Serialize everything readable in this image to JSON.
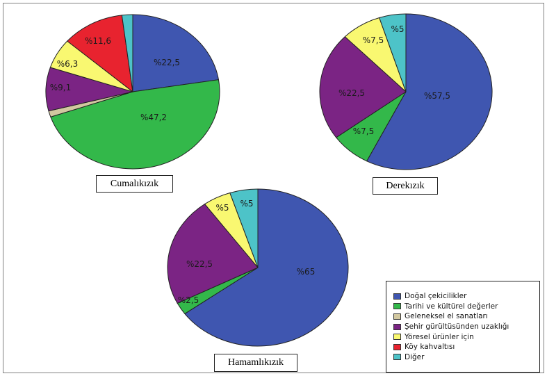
{
  "colors": {
    "Doğal çekicilikler": "#3f56b0",
    "Tarihi ve kültürel değerler": "#33b84a",
    "Geleneksel el sanatları": "#d2c8a0",
    "Şehir gürültüsünden uzaklığı": "#7b2484",
    "Yöresel ürünler için": "#f9f871",
    "Köy kahvaltısı": "#e8232f",
    "Diğer": "#4dc3c8"
  },
  "legend": {
    "items": [
      "Doğal çekicilikler",
      "Tarihi ve kültürel değerler",
      "Geleneksel el sanatları",
      "Şehir gürültüsünden uzaklığı",
      "Yöresel ürünler için",
      "Köy kahvaltısı",
      "Diğer"
    ]
  },
  "chart_data": [
    {
      "type": "pie",
      "title": "Cumalıkızık",
      "slices": [
        {
          "category": "Doğal çekicilikler",
          "value": 22.5,
          "label": "%22,5"
        },
        {
          "category": "Tarihi ve kültürel değerler",
          "value": 47.2,
          "label": "%47,2"
        },
        {
          "category": "Geleneksel el sanatları",
          "value": 1.3,
          "label": ""
        },
        {
          "category": "Şehir gürültüsünden uzaklığı",
          "value": 9.1,
          "label": "%9,1"
        },
        {
          "category": "Yöresel ürünler için",
          "value": 6.3,
          "label": "%6,3"
        },
        {
          "category": "Köy kahvaltısı",
          "value": 11.6,
          "label": "%11,6"
        },
        {
          "category": "Diğer",
          "value": 2.0,
          "label": ""
        }
      ]
    },
    {
      "type": "pie",
      "title": "Derekızık",
      "slices": [
        {
          "category": "Doğal çekicilikler",
          "value": 57.5,
          "label": "%57,5"
        },
        {
          "category": "Tarihi ve kültürel değerler",
          "value": 7.5,
          "label": "%7,5"
        },
        {
          "category": "Şehir gürültüsünden uzaklığı",
          "value": 22.5,
          "label": "%22,5"
        },
        {
          "category": "Yöresel ürünler için",
          "value": 7.5,
          "label": "%7,5"
        },
        {
          "category": "Diğer",
          "value": 5,
          "label": "%5"
        }
      ]
    },
    {
      "type": "pie",
      "title": "Hamamlıkızık",
      "slices": [
        {
          "category": "Doğal çekicilikler",
          "value": 65,
          "label": "%65"
        },
        {
          "category": "Tarihi ve kültürel değerler",
          "value": 2.5,
          "label": "%2,5"
        },
        {
          "category": "Şehir gürültüsünden uzaklığı",
          "value": 22.5,
          "label": "%22,5"
        },
        {
          "category": "Yöresel ürünler için",
          "value": 5,
          "label": "%5"
        },
        {
          "category": "Diğer",
          "value": 5,
          "label": "%5"
        }
      ]
    }
  ]
}
